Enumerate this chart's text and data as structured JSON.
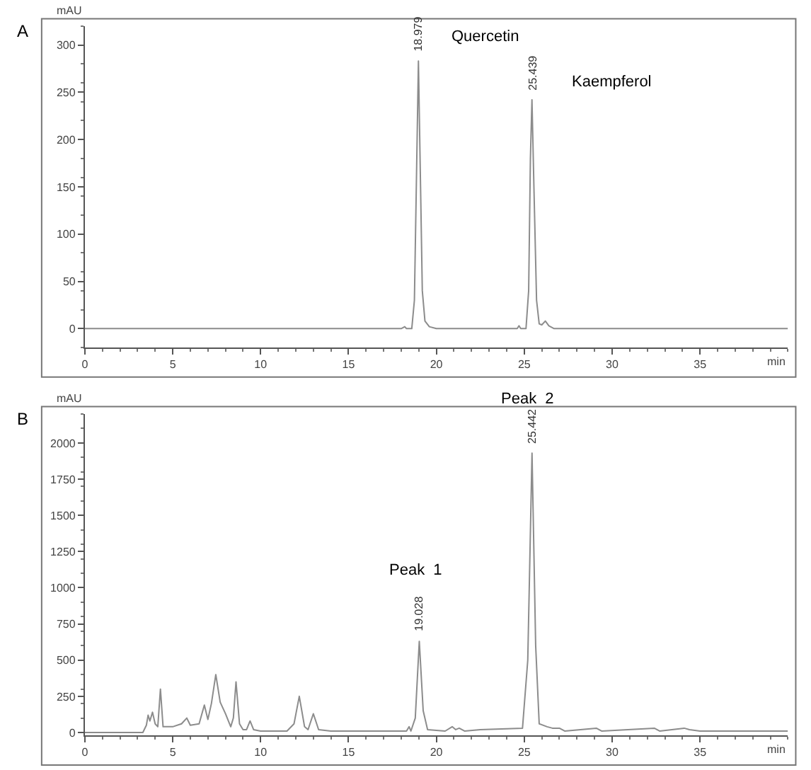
{
  "chart_data": [
    {
      "type": "line",
      "xlabel": "min",
      "ylabel": "mAU",
      "xlim": [
        0,
        40
      ],
      "xticks": [
        0,
        5,
        10,
        15,
        20,
        25,
        30,
        35
      ],
      "ylim": [
        -20,
        320
      ],
      "yticks": [
        0,
        50,
        100,
        150,
        200,
        250,
        300
      ],
      "marker": "none",
      "line_style": "solid",
      "annotations": [
        "A",
        "Quercetin",
        {
          "text": "18.979",
          "x": 18.979,
          "y": 283
        },
        "Kaempferol",
        {
          "text": "25.439",
          "x": 25.439,
          "y": 242
        }
      ],
      "series": [
        {
          "color": "#8c8c8c",
          "x": [
            0,
            18.0,
            18.2,
            18.3,
            18.6,
            18.75,
            18.85,
            18.979,
            19.1,
            19.2,
            19.35,
            19.6,
            20.0,
            21.0,
            21.1,
            24.6,
            24.7,
            24.8,
            25.1,
            25.25,
            25.35,
            25.439,
            25.55,
            25.7,
            25.85,
            26.0,
            26.2,
            26.4,
            26.7,
            30,
            40
          ],
          "values": [
            0,
            0,
            2,
            0,
            0,
            30,
            140,
            283,
            150,
            40,
            8,
            2,
            0,
            0,
            0,
            0,
            3,
            0,
            0,
            40,
            180,
            242,
            150,
            30,
            5,
            4,
            8,
            3,
            0,
            0,
            0
          ]
        }
      ]
    },
    {
      "type": "line",
      "xlabel": "min",
      "ylabel": "mAU",
      "xlim": [
        0,
        40
      ],
      "xticks": [
        0,
        5,
        10,
        15,
        20,
        25,
        30,
        35
      ],
      "ylim": [
        -20,
        2200
      ],
      "yticks": [
        0,
        250,
        500,
        750,
        1000,
        1250,
        1500,
        1750,
        2000
      ],
      "marker": "none",
      "line_style": "solid",
      "annotations": [
        "B",
        "Peak  1",
        {
          "text": "19.028",
          "x": 19.028,
          "y": 630
        },
        "Peak  2",
        {
          "text": "25.442",
          "x": 25.442,
          "y": 1930
        }
      ],
      "series": [
        {
          "color": "#8c8c8c",
          "x": [
            0,
            3.3,
            3.5,
            3.6,
            3.7,
            3.85,
            4.0,
            4.15,
            4.3,
            4.45,
            5.0,
            5.5,
            5.8,
            6.0,
            6.5,
            6.8,
            7.0,
            7.2,
            7.45,
            7.7,
            8.0,
            8.3,
            8.45,
            8.6,
            8.8,
            9.0,
            9.2,
            9.4,
            9.6,
            10.0,
            11.5,
            11.9,
            12.2,
            12.5,
            12.7,
            13.0,
            13.3,
            14.0,
            18.3,
            18.45,
            18.55,
            18.8,
            19.028,
            19.25,
            19.5,
            20.5,
            20.9,
            21.1,
            21.3,
            21.6,
            22.5,
            24.9,
            25.2,
            25.442,
            25.65,
            25.85,
            26.3,
            26.6,
            27.0,
            27.3,
            29.1,
            29.4,
            32.4,
            32.7,
            34.1,
            34.4,
            35,
            36,
            40
          ],
          "values": [
            0,
            0,
            50,
            120,
            80,
            140,
            60,
            40,
            300,
            40,
            40,
            60,
            100,
            50,
            60,
            190,
            90,
            200,
            400,
            210,
            130,
            40,
            100,
            350,
            60,
            20,
            20,
            80,
            20,
            10,
            10,
            60,
            250,
            40,
            20,
            130,
            20,
            10,
            10,
            40,
            10,
            100,
            630,
            150,
            20,
            10,
            40,
            20,
            30,
            10,
            20,
            30,
            500,
            1930,
            600,
            60,
            40,
            30,
            30,
            10,
            30,
            10,
            30,
            10,
            30,
            20,
            10,
            10,
            10
          ]
        }
      ]
    }
  ]
}
